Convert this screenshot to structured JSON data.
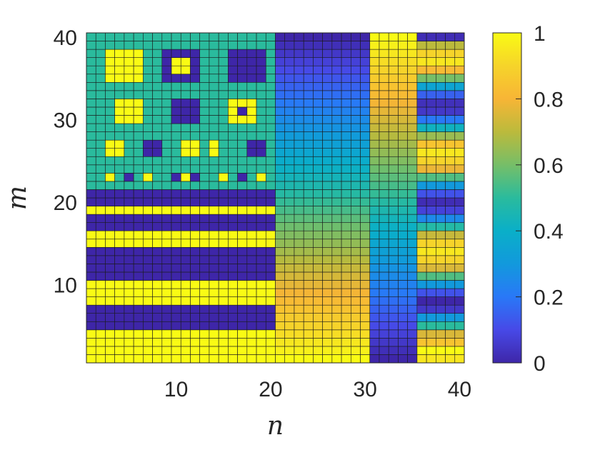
{
  "chart_data": {
    "type": "heatmap",
    "title": "",
    "xlabel": "n",
    "ylabel": "m",
    "x_range": [
      1,
      40
    ],
    "y_range": [
      1,
      40
    ],
    "x_ticks": [
      10,
      20,
      30,
      40
    ],
    "y_ticks": [
      10,
      20,
      30,
      40
    ],
    "colorbar": {
      "colormap": "parula",
      "range": [
        0,
        1
      ],
      "ticks": [
        0,
        0.2,
        0.4,
        0.6,
        0.8,
        1
      ],
      "tick_labels": [
        "0",
        "0.2",
        "0.4",
        "0.6",
        "0.8",
        "1"
      ]
    },
    "grid_lines": true,
    "regions": [
      {
        "name": "left block",
        "n_range": [
          1,
          20
        ],
        "m_range": [
          1,
          21
        ],
        "pattern": "horizontal stripes (rows bottom to top)",
        "row_values": [
          1,
          1,
          1,
          1,
          0,
          0,
          0,
          1,
          1,
          1,
          0,
          0,
          0,
          0,
          1,
          1,
          0,
          0,
          1,
          0,
          0
        ]
      },
      {
        "name": "upper-left block",
        "n_range": [
          1,
          20
        ],
        "m_range": [
          22,
          40
        ],
        "background_value": 0.5,
        "squares": [
          {
            "n": [
              3,
              6
            ],
            "m": [
              35,
              38
            ],
            "value": 1
          },
          {
            "n": [
              9,
              12
            ],
            "m": [
              35,
              38
            ],
            "value": 0
          },
          {
            "n": [
              10,
              11
            ],
            "m": [
              36,
              37
            ],
            "value": 1
          },
          {
            "n": [
              16,
              19
            ],
            "m": [
              35,
              38
            ],
            "value": 0
          },
          {
            "n": [
              4,
              6
            ],
            "m": [
              30,
              32
            ],
            "value": 1
          },
          {
            "n": [
              10,
              12
            ],
            "m": [
              30,
              32
            ],
            "value": 0
          },
          {
            "n": [
              16,
              18
            ],
            "m": [
              30,
              32
            ],
            "value": 1
          },
          {
            "n": [
              17,
              17
            ],
            "m": [
              31,
              31
            ],
            "value": 0
          },
          {
            "n": [
              3,
              4
            ],
            "m": [
              26,
              27
            ],
            "value": 1
          },
          {
            "n": [
              7,
              8
            ],
            "m": [
              26,
              27
            ],
            "value": 0
          },
          {
            "n": [
              11,
              12
            ],
            "m": [
              26,
              27
            ],
            "value": 1
          },
          {
            "n": [
              14,
              14
            ],
            "m": [
              26,
              27
            ],
            "value": 1
          },
          {
            "n": [
              18,
              19
            ],
            "m": [
              26,
              27
            ],
            "value": 0
          },
          {
            "n": [
              3,
              3
            ],
            "m": [
              23,
              23
            ],
            "value": 1
          },
          {
            "n": [
              5,
              5
            ],
            "m": [
              23,
              23
            ],
            "value": 0
          },
          {
            "n": [
              7,
              7
            ],
            "m": [
              23,
              23
            ],
            "value": 1
          },
          {
            "n": [
              10,
              10
            ],
            "m": [
              23,
              23
            ],
            "value": 0
          },
          {
            "n": [
              11,
              11
            ],
            "m": [
              23,
              23
            ],
            "value": 1
          },
          {
            "n": [
              12,
              12
            ],
            "m": [
              23,
              23
            ],
            "value": 0
          },
          {
            "n": [
              15,
              15
            ],
            "m": [
              23,
              23
            ],
            "value": 1
          },
          {
            "n": [
              17,
              17
            ],
            "m": [
              23,
              23
            ],
            "value": 0
          },
          {
            "n": [
              19,
              19
            ],
            "m": [
              23,
              23
            ],
            "value": 1
          }
        ]
      },
      {
        "name": "gradient block",
        "n_range": [
          21,
          30
        ],
        "m_range": [
          1,
          40
        ],
        "value_at_m": {
          "1": 1.0,
          "40": 0.0
        },
        "pattern": "linear gradient, high at bottom to low at top"
      },
      {
        "name": "narrow gradient block",
        "n_range": [
          31,
          35
        ],
        "m_range": [
          1,
          40
        ],
        "value_at_m": {
          "1": 0.0,
          "40": 1.0
        },
        "pattern": "linear gradient, low at bottom to high at top"
      },
      {
        "name": "right oscillating block",
        "n_range": [
          36,
          40
        ],
        "m_range": [
          1,
          40
        ],
        "pattern": "oscillating horizontal bands, period about 7 rows",
        "row_values": [
          0.95,
          1,
          0.85,
          0.75,
          0.5,
          0.3,
          0.05,
          0,
          0.12,
          0.3,
          0.55,
          0.75,
          0.9,
          0.95,
          0.9,
          0.72,
          0.48,
          0.25,
          0.08,
          0.02,
          0.12,
          0.3,
          0.55,
          0.78,
          0.9,
          0.95,
          0.85,
          0.65,
          0.42,
          0.2,
          0.05,
          0.03,
          0.15,
          0.35,
          0.6,
          0.82,
          0.95,
          0.9,
          0.7,
          0.02
        ]
      }
    ]
  }
}
